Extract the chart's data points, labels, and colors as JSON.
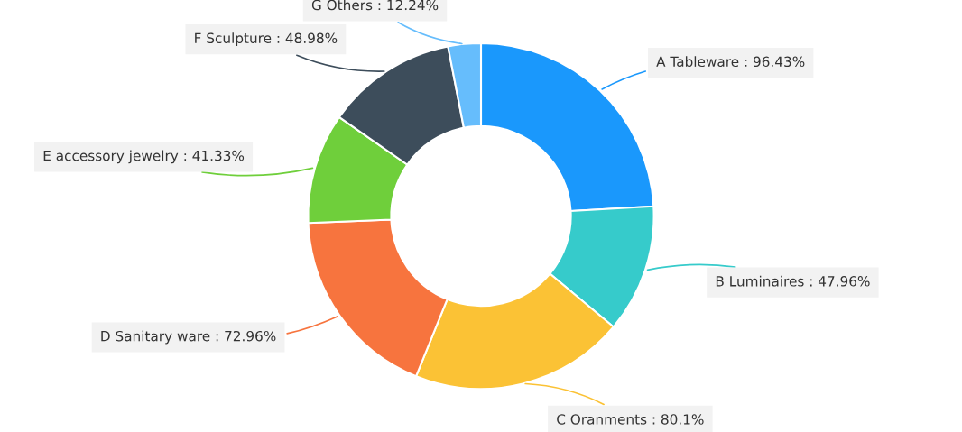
{
  "chart_data": {
    "type": "donut",
    "categories": [
      "A Tableware",
      "B Luminaires",
      "C Oranments",
      "D Sanitary ware",
      "E accessory jewelry",
      "F Sculpture",
      "G Others"
    ],
    "values": [
      96.43,
      47.96,
      80.1,
      72.96,
      41.33,
      48.98,
      12.24
    ],
    "value_labels": [
      "96.43%",
      "47.96%",
      "80.1%",
      "72.96%",
      "41.33%",
      "48.98%",
      "12.24%"
    ],
    "colors": [
      "#1a98fc",
      "#36cbcb",
      "#fbc235",
      "#f7743e",
      "#6fcf3b",
      "#3d4d5b",
      "#66bdfc"
    ],
    "legend": false
  }
}
